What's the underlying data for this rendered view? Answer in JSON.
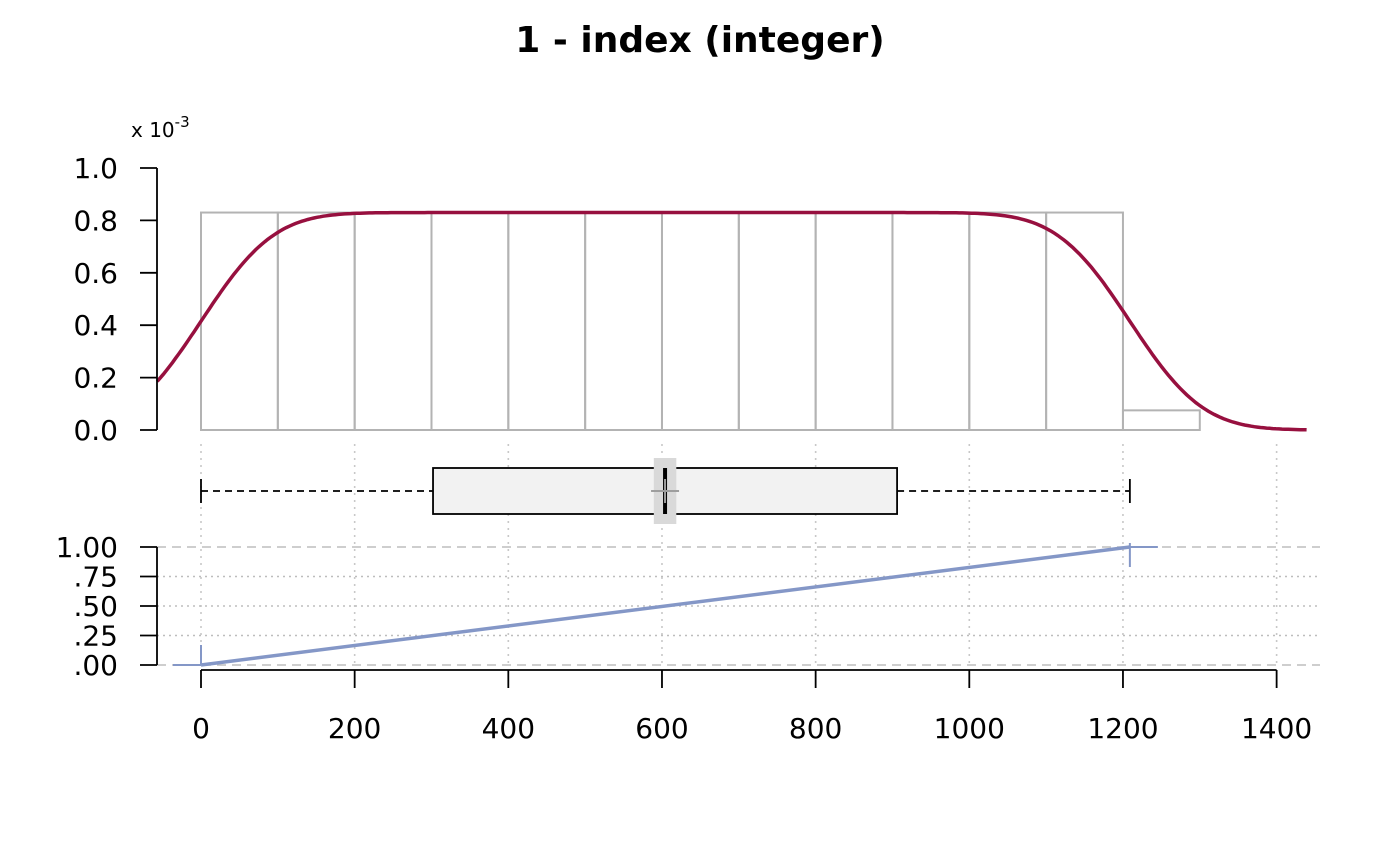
{
  "chart_data": {
    "title": "1 - index (integer)",
    "density_panel": {
      "type": "histogram+density",
      "y_scale_label": "x 10",
      "y_scale_exponent": "-3",
      "y_ticks": [
        "0.0",
        "0.2",
        "0.4",
        "0.6",
        "0.8",
        "1.0"
      ],
      "y_tick_values": [
        0,
        0.2,
        0.4,
        0.6,
        0.8,
        1.0
      ],
      "ylim": [
        0,
        1.0
      ],
      "histogram_bins": [
        {
          "x0": 0,
          "x1": 100,
          "density": 0.83
        },
        {
          "x0": 100,
          "x1": 200,
          "density": 0.83
        },
        {
          "x0": 200,
          "x1": 300,
          "density": 0.83
        },
        {
          "x0": 300,
          "x1": 400,
          "density": 0.83
        },
        {
          "x0": 400,
          "x1": 500,
          "density": 0.83
        },
        {
          "x0": 500,
          "x1": 600,
          "density": 0.83
        },
        {
          "x0": 600,
          "x1": 700,
          "density": 0.83
        },
        {
          "x0": 700,
          "x1": 800,
          "density": 0.83
        },
        {
          "x0": 800,
          "x1": 900,
          "density": 0.83
        },
        {
          "x0": 900,
          "x1": 1000,
          "density": 0.83
        },
        {
          "x0": 1000,
          "x1": 1100,
          "density": 0.83
        },
        {
          "x0": 1100,
          "x1": 1200,
          "density": 0.83
        },
        {
          "x0": 1200,
          "x1": 1300,
          "density": 0.075
        }
      ],
      "density_curve": {
        "plateau": 0.83,
        "ramp_start": 0,
        "ramp_end": 1209,
        "bandwidth": 75,
        "x_range": [
          -57,
          1440
        ]
      },
      "colors": {
        "curve": "#97103f",
        "bins": "#b3b3b3"
      }
    },
    "box_panel": {
      "type": "boxplot",
      "whisker_low": 0,
      "q1": 302,
      "median": 604,
      "notch_low": 590,
      "notch_high": 618,
      "q3": 906,
      "whisker_high": 1209,
      "mean": 604,
      "colors": {
        "box_fill": "#f2f2f2",
        "notch": "#d9d9d9"
      }
    },
    "ecdf_panel": {
      "type": "ecdf",
      "y_ticks": [
        ".00",
        ".25",
        ".50",
        ".75",
        "1.00"
      ],
      "y_tick_values": [
        0,
        0.25,
        0.5,
        0.75,
        1.0
      ],
      "x_min": 0,
      "x_max": 1209,
      "colors": {
        "line": "#8497c7"
      }
    },
    "x_axis": {
      "ticks": [
        "0",
        "200",
        "400",
        "600",
        "800",
        "1000",
        "1200",
        "1400"
      ],
      "tick_values": [
        0,
        200,
        400,
        600,
        800,
        1000,
        1200,
        1400
      ],
      "xlim": [
        -57,
        1440
      ]
    }
  }
}
